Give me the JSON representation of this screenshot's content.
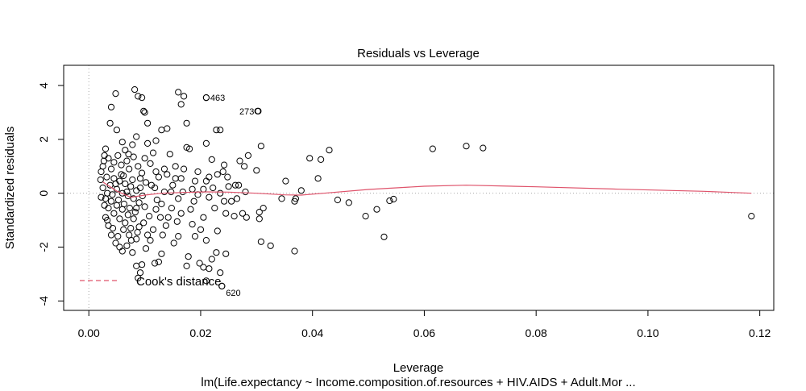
{
  "chart_data": {
    "type": "scatter",
    "title": "Residuals vs Leverage",
    "xlabel": "Leverage",
    "ylabel": "Standardized residuals",
    "caption": "lm(Life.expectancy ~ Income.composition.of.resources + HIV.AIDS + Adult.Mor ...",
    "xlim": [
      -0.0045,
      0.1225
    ],
    "ylim": [
      -4.35,
      4.75
    ],
    "x_ticks": [
      0.0,
      0.02,
      0.04,
      0.06,
      0.08,
      0.1,
      0.12
    ],
    "x_tick_labels": [
      "0.00",
      "0.02",
      "0.04",
      "0.06",
      "0.08",
      "0.10",
      "0.12"
    ],
    "y_ticks": [
      -4,
      -2,
      0,
      2,
      4
    ],
    "y_tick_labels": [
      "-4",
      "-2",
      "0",
      "2",
      "4"
    ],
    "reference_lines": {
      "horizontal": 0,
      "vertical": 0
    },
    "legend": {
      "position": "bottom-left",
      "entries": [
        {
          "label": "Cook's distance",
          "color": "#DF536B",
          "style": "dashed"
        }
      ]
    },
    "smooth_line": {
      "color": "#DF536B",
      "x": [
        0.0025,
        0.005,
        0.0075,
        0.01,
        0.013,
        0.017,
        0.021,
        0.025,
        0.03,
        0.035,
        0.038,
        0.042,
        0.05,
        0.06,
        0.0675,
        0.08,
        0.095,
        0.11,
        0.1185
      ],
      "y": [
        0.42,
        0.08,
        -0.15,
        -0.07,
        0.0,
        0.03,
        0.05,
        0.04,
        0.0,
        -0.06,
        -0.07,
        0.0,
        0.14,
        0.26,
        0.3,
        0.24,
        0.15,
        0.07,
        0.0
      ]
    },
    "labeled_points": [
      {
        "label": "463",
        "x": 0.021,
        "y": 3.55
      },
      {
        "label": "273",
        "x": 0.0303,
        "y": 3.05
      },
      {
        "label": "620",
        "x": 0.0238,
        "y": -3.45
      }
    ],
    "points": [
      [
        0.0615,
        1.65
      ],
      [
        0.0675,
        1.75
      ],
      [
        0.0705,
        1.68
      ],
      [
        0.1185,
        -0.85
      ],
      [
        0.0528,
        -1.62
      ],
      [
        0.0495,
        -0.85
      ],
      [
        0.0515,
        -0.6
      ],
      [
        0.0538,
        -0.28
      ],
      [
        0.0545,
        -0.22
      ],
      [
        0.0465,
        -0.35
      ],
      [
        0.0445,
        -0.25
      ],
      [
        0.043,
        1.6
      ],
      [
        0.0415,
        1.25
      ],
      [
        0.0395,
        1.3
      ],
      [
        0.041,
        0.55
      ],
      [
        0.038,
        0.1
      ],
      [
        0.0368,
        -0.3
      ],
      [
        0.037,
        -0.2
      ],
      [
        0.0368,
        -2.15
      ],
      [
        0.0352,
        0.45
      ],
      [
        0.0345,
        -0.2
      ],
      [
        0.0325,
        -1.95
      ],
      [
        0.0308,
        -1.8
      ],
      [
        0.0312,
        -0.55
      ],
      [
        0.0305,
        -0.95
      ],
      [
        0.0305,
        -0.7
      ],
      [
        0.03,
        0.85
      ],
      [
        0.0308,
        1.75
      ],
      [
        0.0302,
        3.05
      ],
      [
        0.0285,
        1.4
      ],
      [
        0.0278,
        1.0
      ],
      [
        0.027,
        1.2
      ],
      [
        0.0268,
        0.3
      ],
      [
        0.0262,
        0.3
      ],
      [
        0.0275,
        -0.75
      ],
      [
        0.0282,
        -0.9
      ],
      [
        0.028,
        0.05
      ],
      [
        0.0265,
        -0.2
      ],
      [
        0.026,
        -0.85
      ],
      [
        0.0255,
        -0.3
      ],
      [
        0.0245,
        -0.75
      ],
      [
        0.0242,
        -0.3
      ],
      [
        0.025,
        0.25
      ],
      [
        0.0248,
        0.6
      ],
      [
        0.0242,
        1.05
      ],
      [
        0.024,
        0.8
      ],
      [
        0.0235,
        2.35
      ],
      [
        0.0228,
        2.35
      ],
      [
        0.0235,
        0.0
      ],
      [
        0.0225,
        -0.55
      ],
      [
        0.0238,
        -3.45
      ],
      [
        0.0235,
        -2.95
      ],
      [
        0.0228,
        -2.2
      ],
      [
        0.023,
        -1.4
      ],
      [
        0.0245,
        -2.25
      ],
      [
        0.022,
        -2.45
      ],
      [
        0.022,
        1.25
      ],
      [
        0.021,
        1.85
      ],
      [
        0.021,
        3.55
      ],
      [
        0.0215,
        -0.15
      ],
      [
        0.021,
        0.45
      ],
      [
        0.0205,
        -0.9
      ],
      [
        0.02,
        -1.35
      ],
      [
        0.021,
        -1.75
      ],
      [
        0.0205,
        -2.75
      ],
      [
        0.0198,
        -2.6
      ],
      [
        0.021,
        -3.25
      ],
      [
        0.0215,
        -2.8
      ],
      [
        0.0195,
        0.8
      ],
      [
        0.019,
        0.45
      ],
      [
        0.0188,
        -0.3
      ],
      [
        0.019,
        -1.6
      ],
      [
        0.0185,
        -1.15
      ],
      [
        0.0182,
        -0.6
      ],
      [
        0.0178,
        -2.35
      ],
      [
        0.0175,
        -2.7
      ],
      [
        0.018,
        1.65
      ],
      [
        0.0175,
        2.6
      ],
      [
        0.017,
        3.6
      ],
      [
        0.016,
        3.75
      ],
      [
        0.0165,
        3.3
      ],
      [
        0.0175,
        1.7
      ],
      [
        0.017,
        0.9
      ],
      [
        0.0165,
        0.55
      ],
      [
        0.016,
        -0.2
      ],
      [
        0.0165,
        -0.75
      ],
      [
        0.0158,
        -1.05
      ],
      [
        0.016,
        -1.6
      ],
      [
        0.0152,
        -1.85
      ],
      [
        0.0148,
        -0.55
      ],
      [
        0.015,
        0.3
      ],
      [
        0.0155,
        1.0
      ],
      [
        0.0145,
        1.45
      ],
      [
        0.014,
        2.4
      ],
      [
        0.013,
        2.35
      ],
      [
        0.014,
        0.7
      ],
      [
        0.0135,
        0.05
      ],
      [
        0.013,
        -0.4
      ],
      [
        0.0138,
        -1.2
      ],
      [
        0.0132,
        -1.55
      ],
      [
        0.013,
        -2.25
      ],
      [
        0.0125,
        -2.55
      ],
      [
        0.012,
        1.95
      ],
      [
        0.0115,
        1.5
      ],
      [
        0.012,
        0.8
      ],
      [
        0.0118,
        0.2
      ],
      [
        0.012,
        -0.6
      ],
      [
        0.0115,
        -1.35
      ],
      [
        0.011,
        -1.75
      ],
      [
        0.0118,
        -2.6
      ],
      [
        0.0105,
        2.6
      ],
      [
        0.01,
        3.0
      ],
      [
        0.0095,
        3.55
      ],
      [
        0.0088,
        3.6
      ],
      [
        0.0082,
        3.85
      ],
      [
        0.0098,
        3.05
      ],
      [
        0.0105,
        1.85
      ],
      [
        0.01,
        1.3
      ],
      [
        0.0095,
        0.75
      ],
      [
        0.0092,
        0.2
      ],
      [
        0.01,
        -0.5
      ],
      [
        0.0098,
        -1.1
      ],
      [
        0.0105,
        -1.55
      ],
      [
        0.0102,
        -2.05
      ],
      [
        0.0095,
        -2.65
      ],
      [
        0.0092,
        -2.95
      ],
      [
        0.0088,
        -3.15
      ],
      [
        0.0085,
        -2.7
      ],
      [
        0.0048,
        3.7
      ],
      [
        0.004,
        3.2
      ],
      [
        0.0038,
        2.6
      ],
      [
        0.005,
        2.35
      ],
      [
        0.006,
        1.9
      ],
      [
        0.0085,
        2.1
      ],
      [
        0.0078,
        1.8
      ],
      [
        0.0065,
        1.6
      ],
      [
        0.003,
        1.65
      ],
      [
        0.0028,
        1.4
      ],
      [
        0.0025,
        1.0
      ],
      [
        0.0022,
        0.8
      ],
      [
        0.0021,
        0.5
      ],
      [
        0.0025,
        0.2
      ],
      [
        0.0022,
        -0.15
      ],
      [
        0.0028,
        -0.45
      ],
      [
        0.003,
        -0.9
      ],
      [
        0.0035,
        -1.2
      ],
      [
        0.004,
        -1.55
      ],
      [
        0.0048,
        -1.85
      ],
      [
        0.0055,
        -2.0
      ],
      [
        0.006,
        -2.15
      ],
      [
        0.0068,
        -1.95
      ],
      [
        0.0072,
        -1.55
      ],
      [
        0.0078,
        -2.2
      ],
      [
        0.0085,
        -1.7
      ],
      [
        0.0035,
        1.3
      ],
      [
        0.004,
        0.9
      ],
      [
        0.0045,
        1.15
      ],
      [
        0.0052,
        1.4
      ],
      [
        0.0058,
        1.05
      ],
      [
        0.0062,
        0.65
      ],
      [
        0.0068,
        1.2
      ],
      [
        0.0072,
        0.9
      ],
      [
        0.008,
        1.35
      ],
      [
        0.0088,
        1.0
      ],
      [
        0.0092,
        0.55
      ],
      [
        0.0032,
        0.6
      ],
      [
        0.0038,
        0.3
      ],
      [
        0.0045,
        0.55
      ],
      [
        0.005,
        0.15
      ],
      [
        0.0055,
        0.45
      ],
      [
        0.006,
        0.0
      ],
      [
        0.0065,
        0.35
      ],
      [
        0.007,
        -0.1
      ],
      [
        0.0075,
        0.25
      ],
      [
        0.008,
        -0.2
      ],
      [
        0.0085,
        0.1
      ],
      [
        0.009,
        -0.35
      ],
      [
        0.003,
        -0.2
      ],
      [
        0.0035,
        -0.55
      ],
      [
        0.004,
        -0.3
      ],
      [
        0.0045,
        -0.75
      ],
      [
        0.005,
        -0.45
      ],
      [
        0.0055,
        -0.95
      ],
      [
        0.006,
        -0.6
      ],
      [
        0.0065,
        -1.1
      ],
      [
        0.007,
        -0.8
      ],
      [
        0.0075,
        -1.3
      ],
      [
        0.008,
        -0.95
      ],
      [
        0.0085,
        -0.55
      ],
      [
        0.009,
        -1.25
      ],
      [
        0.0033,
        0.0
      ],
      [
        0.0042,
        -0.05
      ],
      [
        0.0048,
        0.35
      ],
      [
        0.0053,
        -0.25
      ],
      [
        0.0058,
        0.7
      ],
      [
        0.0063,
        -0.4
      ],
      [
        0.0068,
        0.05
      ],
      [
        0.0073,
        -0.55
      ],
      [
        0.0078,
        0.5
      ],
      [
        0.0083,
        -0.7
      ],
      [
        0.0096,
        -0.1
      ],
      [
        0.0102,
        0.4
      ],
      [
        0.0027,
        1.2
      ],
      [
        0.0033,
        -1.0
      ],
      [
        0.0043,
        -1.3
      ],
      [
        0.0052,
        -1.6
      ],
      [
        0.0062,
        -1.35
      ],
      [
        0.0071,
        1.45
      ],
      [
        0.0076,
        -1.75
      ],
      [
        0.0087,
        -1.45
      ],
      [
        0.011,
        1.1
      ],
      [
        0.0125,
        0.6
      ],
      [
        0.0128,
        -0.9
      ],
      [
        0.0142,
        -0.9
      ],
      [
        0.0155,
        0.55
      ],
      [
        0.0108,
        -0.85
      ],
      [
        0.0112,
        0.3
      ],
      [
        0.0122,
        -0.25
      ],
      [
        0.0135,
        0.9
      ],
      [
        0.0147,
        0.05
      ],
      [
        0.0168,
        0.05
      ],
      [
        0.0185,
        0.15
      ],
      [
        0.0195,
        -0.05
      ],
      [
        0.0205,
        0.15
      ],
      [
        0.0215,
        0.6
      ],
      [
        0.0222,
        0.2
      ],
      [
        0.023,
        0.7
      ]
    ]
  }
}
